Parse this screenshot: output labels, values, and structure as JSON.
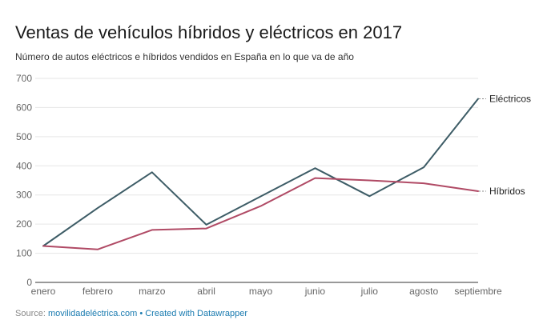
{
  "title": "Ventas de vehículos híbridos y eléctricos en 2017",
  "subtitle": "Número de autos eléctricos e híbridos vendidos en España en lo que va de año",
  "footer": {
    "source_label": "Source:",
    "source_name": "movilidadeléctrica.com",
    "separator": "•",
    "credit": "Created with Datawrapper"
  },
  "colors": {
    "electricos": "#3d5c66",
    "hibridos": "#b04a65",
    "grid": "#e6e6e6",
    "axis": "#333333"
  },
  "chart_data": {
    "type": "line",
    "title": "Ventas de vehículos híbridos y eléctricos en 2017",
    "subtitle": "Número de autos eléctricos e híbridos vendidos en España en lo que va de año",
    "categories": [
      "enero",
      "febrero",
      "marzo",
      "abril",
      "mayo",
      "junio",
      "julio",
      "agosto",
      "septiembre"
    ],
    "y_ticks": [
      0,
      100,
      200,
      300,
      400,
      500,
      600,
      700
    ],
    "ylim": [
      0,
      700
    ],
    "grid": true,
    "legend": "inline-right",
    "series": [
      {
        "key": "electricos",
        "name": "Eléctricos",
        "values": [
          125,
          255,
          378,
          198,
          295,
          392,
          296,
          395,
          630
        ]
      },
      {
        "key": "hibridos",
        "name": "Híbridos",
        "values": [
          125,
          113,
          180,
          185,
          262,
          358,
          350,
          340,
          313
        ]
      }
    ]
  }
}
